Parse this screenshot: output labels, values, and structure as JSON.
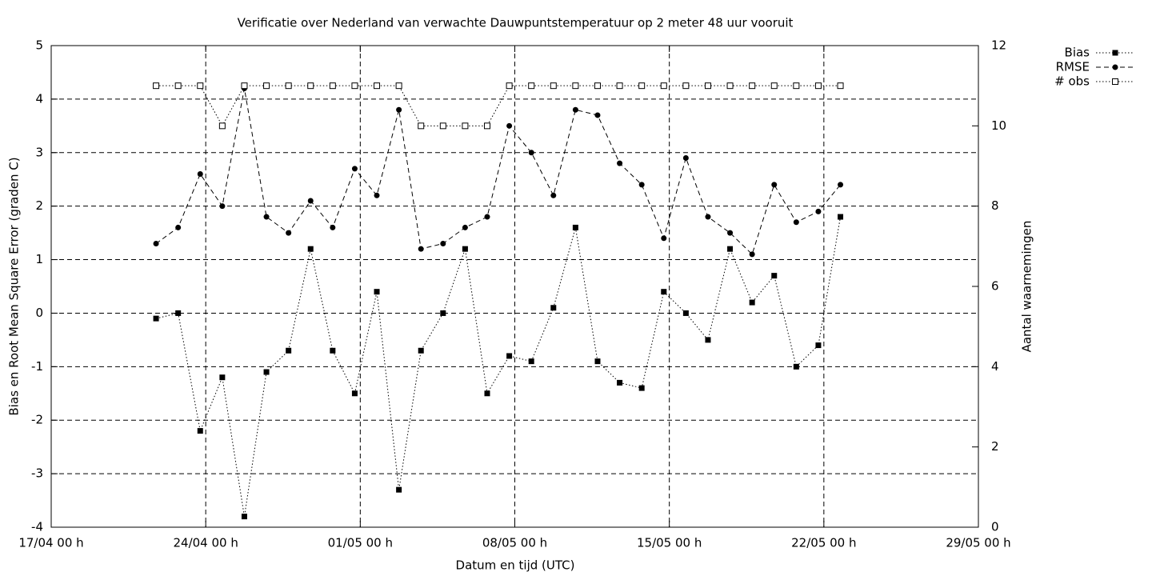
{
  "chart_data": {
    "type": "line",
    "title": "Verificatie over Nederland van verwachte Dauwpuntstemperatuur op 2 meter 48 uur vooruit",
    "x_label": "Datum en tijd (UTC)",
    "y_label": "Bias en Root Mean Square Error (graden C)",
    "y2_label": "Aantal waarnemingen",
    "x": [
      "21/04 18 h",
      "22/04 18 h",
      "23/04 18 h",
      "24/04 18 h",
      "25/04 18 h",
      "26/04 18 h",
      "27/04 18 h",
      "28/04 18 h",
      "29/04 18 h",
      "30/04 18 h",
      "01/05 18 h",
      "02/05 18 h",
      "03/05 18 h",
      "04/05 18 h",
      "05/05 18 h",
      "06/05 18 h",
      "07/05 18 h",
      "08/05 18 h",
      "09/05 18 h",
      "10/05 18 h",
      "11/05 18 h",
      "12/05 18 h",
      "13/05 18 h",
      "14/05 18 h",
      "15/05 18 h",
      "16/05 18 h",
      "17/05 18 h",
      "18/05 18 h",
      "19/05 18 h",
      "20/05 18 h",
      "21/05 18 h",
      "22/05 18 h"
    ],
    "series": [
      {
        "name": "Bias",
        "color": "#000000",
        "line_style": "dotted",
        "marker": "square-filled",
        "values": [
          -0.1,
          0,
          -2.2,
          -1.2,
          -3.8,
          -1.1,
          -0.7,
          1.2,
          -0.7,
          -1.5,
          0.4,
          -3.3,
          -0.7,
          0,
          1.2,
          -1.5,
          -0.8,
          -0.9,
          0.1,
          1.6,
          -0.9,
          -1.3,
          -1.4,
          0.4,
          0,
          -0.5,
          1.2,
          0.2,
          0.7,
          -1.0,
          -0.6,
          1.8
        ]
      },
      {
        "name": "RMSE",
        "color": "#000000",
        "line_style": "dashed",
        "marker": "circle-filled",
        "values": [
          1.3,
          1.6,
          2.6,
          2.0,
          4.2,
          1.8,
          1.5,
          2.1,
          1.6,
          2.7,
          2.2,
          3.8,
          1.2,
          1.3,
          1.6,
          1.8,
          3.5,
          3.0,
          2.2,
          3.8,
          3.7,
          2.8,
          2.4,
          1.4,
          2.9,
          1.8,
          1.5,
          1.1,
          2.4,
          1.7,
          1.9,
          2.4
        ]
      },
      {
        "name": "# obs",
        "color": "#000000",
        "line_style": "dotted",
        "marker": "square-open",
        "axis": "y2",
        "values": [
          11,
          11,
          11,
          10,
          11,
          11,
          11,
          11,
          11,
          11,
          11,
          11,
          10,
          10,
          10,
          10,
          11,
          11,
          11,
          11,
          11,
          11,
          11,
          11,
          11,
          11,
          11,
          11,
          11,
          11,
          11,
          11
        ]
      }
    ],
    "xlim": [
      "17/04 00 h",
      "29/05 00 h"
    ],
    "xticks": [
      "17/04 00 h",
      "24/04 00 h",
      "01/05 00 h",
      "08/05 00 h",
      "15/05 00 h",
      "22/05 00 h",
      "29/05 00 h"
    ],
    "ylim": [
      -4,
      5
    ],
    "yticks": [
      -4,
      -3,
      -2,
      -1,
      0,
      1,
      2,
      3,
      4,
      5
    ],
    "y2lim": [
      0,
      12
    ],
    "y2ticks": [
      0,
      2,
      4,
      6,
      8,
      10,
      12
    ],
    "grid": true,
    "legend": "top-right-outside"
  }
}
